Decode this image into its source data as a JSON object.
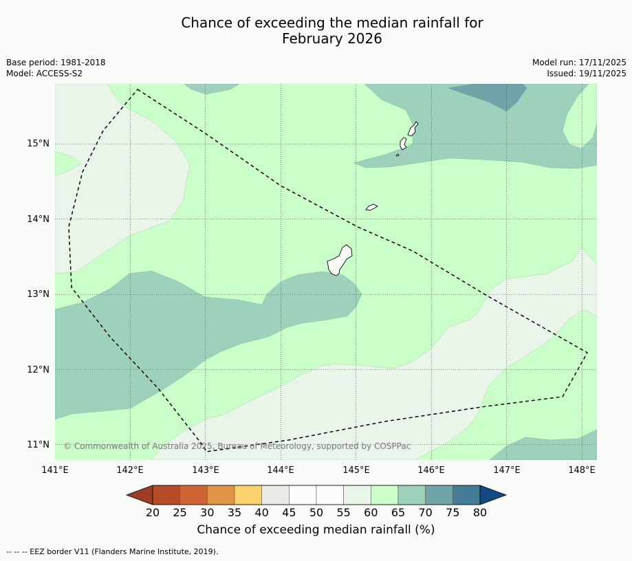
{
  "title": {
    "line1": "Chance of exceeding the median rainfall for",
    "line2": "February 2026"
  },
  "meta": {
    "base_period": "Base period: 1981-2018",
    "model": "Model: ACCESS-S2",
    "model_run": "Model run: 17/11/2025",
    "issued": "Issued: 19/11/2025"
  },
  "map": {
    "lat_labels": [
      "15°N",
      "14°N",
      "13°N",
      "12°N",
      "11°N"
    ],
    "lon_labels": [
      "141°E",
      "142°E",
      "143°E",
      "144°E",
      "145°E",
      "146°E",
      "147°E",
      "148°E"
    ],
    "copyright": "© Commonwealth of Australia 2025, Bureau of Meteorology, supported by COSPPac",
    "colors": {
      "band_55_60": "#eaf5ea",
      "band_60_65": "#caffca",
      "band_65_70": "#9ed1bb",
      "band_70_75": "#6fa5a8"
    }
  },
  "colorbar": {
    "ticks": [
      "20",
      "25",
      "30",
      "35",
      "40",
      "45",
      "50",
      "55",
      "60",
      "65",
      "70",
      "75",
      "80"
    ],
    "colors": [
      "#b54b29",
      "#cd6232",
      "#e09444",
      "#fdd16c",
      "#e9ebe7",
      "#fbfcfb",
      "#fbfcfb",
      "#eaf5ea",
      "#caffca",
      "#9ed1bb",
      "#6fa5a8",
      "#457c97"
    ],
    "under_color": "#9c3d25",
    "over_color": "#134a83",
    "label": "Chance of exceeding median rainfall (%)"
  },
  "footnote": "--  --  -- EEZ border V11 (Flanders Marine Institute, 2019)."
}
